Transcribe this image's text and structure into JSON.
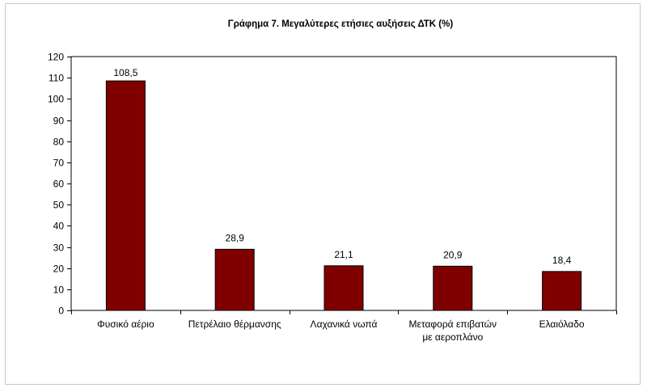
{
  "chart_data": {
    "type": "bar",
    "title": "Γράφημα 7. Μεγαλύτερες ετήσιες αυξήσεις ΔΤΚ (%)",
    "categories": [
      "Φυσικό αέριο",
      "Πετρέλαιο θέρμανσης",
      "Λαχανικά νωπά",
      "Μεταφορά επιβατών με αεροπλάνο",
      "Ελαιόλαδο"
    ],
    "values": [
      108.5,
      28.9,
      21.1,
      20.9,
      18.4
    ],
    "value_labels": [
      "108,5",
      "28,9",
      "21,1",
      "20,9",
      "18,4"
    ],
    "ylim": [
      0,
      120
    ],
    "yticks": [
      0,
      10,
      20,
      30,
      40,
      50,
      60,
      70,
      80,
      90,
      100,
      110,
      120
    ],
    "grid": false,
    "legend": "none",
    "bar_color": "#800000"
  }
}
